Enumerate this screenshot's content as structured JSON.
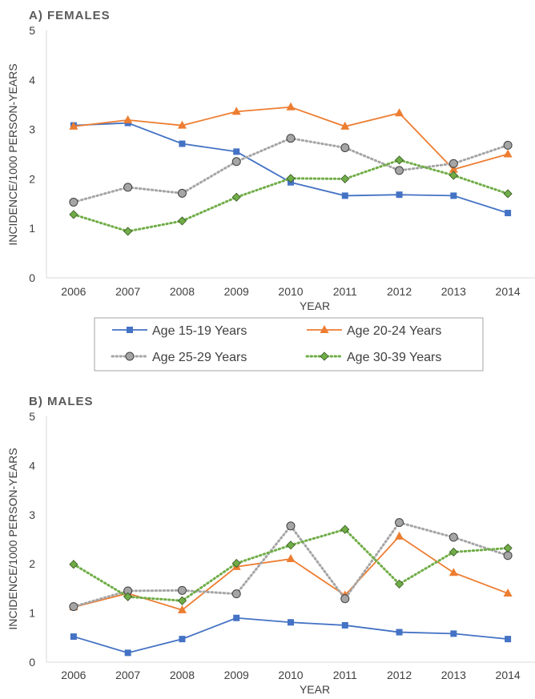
{
  "chart_data": [
    {
      "type": "line",
      "title": "A) FEMALES",
      "xlabel": "YEAR",
      "ylabel": "INCIDENCE/1000 PERSON-YEARS",
      "ylim": [
        0,
        5
      ],
      "yticks": [
        "0",
        "1",
        "2",
        "3",
        "4",
        "5"
      ],
      "categories": [
        "2006",
        "2007",
        "2008",
        "2009",
        "2010",
        "2011",
        "2012",
        "2013",
        "2014"
      ],
      "grid": false,
      "series": [
        {
          "name": "Age 15-19 Years",
          "values": [
            3.08,
            3.13,
            2.71,
            2.55,
            1.93,
            1.66,
            1.68,
            1.66,
            1.31
          ],
          "color": "#4472C4",
          "marker": "square",
          "style": "solid"
        },
        {
          "name": "Age 20-24 Years",
          "values": [
            3.06,
            3.19,
            3.08,
            3.36,
            3.45,
            3.06,
            3.33,
            2.19,
            2.5
          ],
          "color": "#ED7D31",
          "marker": "triangle",
          "style": "solid"
        },
        {
          "name": "Age 25-29 Years",
          "values": [
            1.53,
            1.83,
            1.71,
            2.35,
            2.82,
            2.63,
            2.17,
            2.31,
            2.68
          ],
          "color": "#A5A5A5",
          "marker": "circle",
          "style": "dotted"
        },
        {
          "name": "Age 30-39 Years",
          "values": [
            1.28,
            0.94,
            1.15,
            1.63,
            2.01,
            2.0,
            2.38,
            2.07,
            1.7
          ],
          "color": "#70AD47",
          "marker": "diamond",
          "style": "dotted"
        }
      ]
    },
    {
      "type": "line",
      "title": "B) MALES",
      "xlabel": "YEAR",
      "ylabel": "INCIDENCE/1000 PERSON-YEARS",
      "ylim": [
        0,
        5
      ],
      "yticks": [
        "0",
        "1",
        "2",
        "3",
        "4",
        "5"
      ],
      "categories": [
        "2006",
        "2007",
        "2008",
        "2009",
        "2010",
        "2011",
        "2012",
        "2013",
        "2014"
      ],
      "grid": false,
      "series": [
        {
          "name": "Age 15-19 Years",
          "values": [
            0.52,
            0.19,
            0.47,
            0.9,
            0.81,
            0.75,
            0.61,
            0.58,
            0.47
          ],
          "color": "#4472C4",
          "marker": "square",
          "style": "solid"
        },
        {
          "name": "Age 20-24 Years",
          "values": [
            1.12,
            1.4,
            1.06,
            1.94,
            2.1,
            1.36,
            2.56,
            1.82,
            1.4
          ],
          "color": "#ED7D31",
          "marker": "triangle",
          "style": "solid"
        },
        {
          "name": "Age 25-29 Years",
          "values": [
            1.13,
            1.45,
            1.46,
            1.39,
            2.77,
            1.29,
            2.84,
            2.54,
            2.17
          ],
          "color": "#A5A5A5",
          "marker": "circle",
          "style": "dotted"
        },
        {
          "name": "Age 30-39 Years",
          "values": [
            1.99,
            1.33,
            1.25,
            2.01,
            2.38,
            2.7,
            1.59,
            2.24,
            2.32
          ],
          "color": "#70AD47",
          "marker": "diamond",
          "style": "dotted"
        }
      ]
    }
  ],
  "legend": {
    "position": "between-panels",
    "items": [
      "Age 15-19 Years",
      "Age 20-24 Years",
      "Age 25-29 Years",
      "Age 30-39 Years"
    ]
  }
}
